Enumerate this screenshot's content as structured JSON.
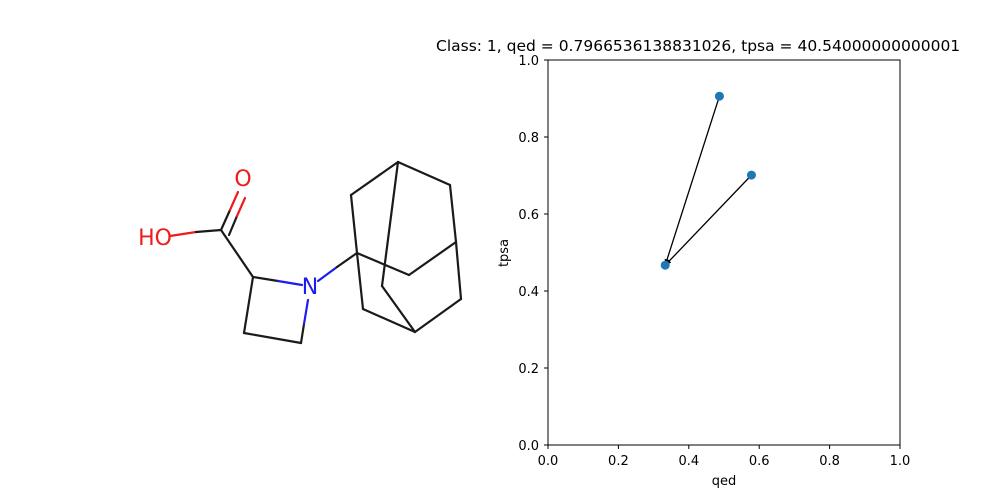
{
  "chart_data": {
    "type": "scatter",
    "title": "Class: 1, qed = 0.7966536138831026, tpsa = 40.54000000000001",
    "xlabel": "qed",
    "ylabel": "tpsa",
    "xlim": [
      0.0,
      1.0
    ],
    "ylim": [
      0.0,
      1.0
    ],
    "xticks": [
      "0.0",
      "0.2",
      "0.4",
      "0.6",
      "0.8",
      "1.0"
    ],
    "yticks": [
      "0.0",
      "0.2",
      "0.4",
      "0.6",
      "0.8",
      "1.0"
    ],
    "grid": false,
    "point_color": "#1f77b4",
    "points": [
      {
        "x": 0.333,
        "y": 0.467
      },
      {
        "x": 0.487,
        "y": 0.906
      },
      {
        "x": 0.578,
        "y": 0.701
      }
    ],
    "arrows": [
      {
        "from": [
          0.333,
          0.467
        ],
        "to": [
          0.487,
          0.906
        ]
      },
      {
        "from": [
          0.333,
          0.467
        ],
        "to": [
          0.578,
          0.701
        ]
      }
    ]
  },
  "molecule": {
    "labels": {
      "oxygen_carbonyl": "O",
      "hydroxyl": "HO",
      "nitrogen": "N"
    },
    "colors": {
      "bond": "#1a1a1a",
      "oxygen": "#ee1c1c",
      "nitrogen": "#1c1cee"
    }
  }
}
